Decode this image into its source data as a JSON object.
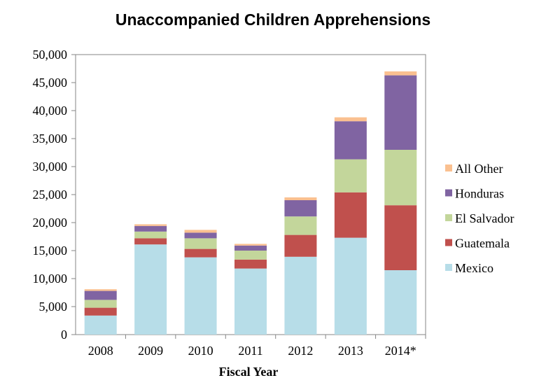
{
  "chart_data": {
    "type": "bar",
    "stacked": true,
    "title": "Unaccompanied Children Apprehensions",
    "xlabel": "Fiscal Year",
    "ylabel": "",
    "ylim": [
      0,
      50000
    ],
    "yticks": [
      0,
      5000,
      10000,
      15000,
      20000,
      25000,
      30000,
      35000,
      40000,
      45000,
      50000
    ],
    "ytick_labels": [
      "0",
      "5,000",
      "10,000",
      "15,000",
      "20,000",
      "25,000",
      "30,000",
      "35,000",
      "40,000",
      "45,000",
      "50,000"
    ],
    "grid": false,
    "legend_position": "right",
    "categories": [
      "2008",
      "2009",
      "2010",
      "2011",
      "2012",
      "2013",
      "2014*"
    ],
    "series": [
      {
        "name": "Mexico",
        "color": "#B7DDE8",
        "values": [
          3400,
          16100,
          13800,
          11800,
          13900,
          17300,
          11500
        ]
      },
      {
        "name": "Guatemala",
        "color": "#C0504D",
        "values": [
          1400,
          1100,
          1500,
          1600,
          3900,
          8100,
          11600
        ]
      },
      {
        "name": "El Salvador",
        "color": "#C3D69B",
        "values": [
          1400,
          1200,
          1900,
          1600,
          3300,
          5900,
          9900
        ]
      },
      {
        "name": "Honduras",
        "color": "#8064A2",
        "values": [
          1600,
          1000,
          1000,
          900,
          2900,
          6800,
          13300
        ]
      },
      {
        "name": "All Other",
        "color": "#FAC090",
        "values": [
          300,
          300,
          500,
          300,
          500,
          700,
          700
        ]
      }
    ]
  }
}
